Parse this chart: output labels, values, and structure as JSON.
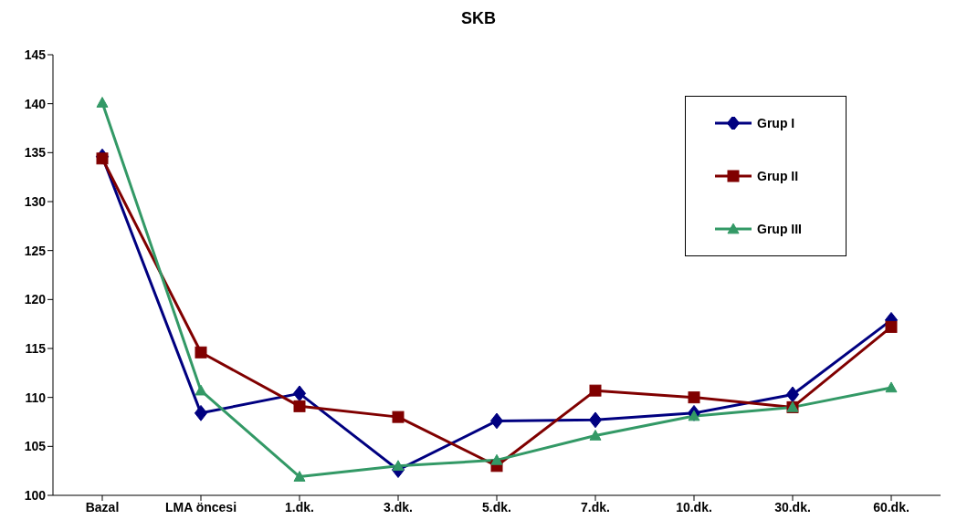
{
  "chart_data": {
    "type": "line",
    "title": "SKB",
    "categories": [
      "Bazal",
      "LMA öncesi",
      "1.dk.",
      "3.dk.",
      "5.dk.",
      "7.dk.",
      "10.dk.",
      "30.dk.",
      "60.dk."
    ],
    "series": [
      {
        "name": "Grup I",
        "color": "#000080",
        "marker": "diamond",
        "values": [
          134.6,
          108.4,
          110.4,
          102.6,
          107.6,
          107.7,
          108.4,
          110.3,
          117.9
        ]
      },
      {
        "name": "Grup II",
        "color": "#800000",
        "marker": "square",
        "values": [
          134.4,
          114.6,
          109.1,
          108.0,
          103.0,
          110.7,
          110.0,
          109.0,
          117.2
        ]
      },
      {
        "name": "Grup III",
        "color": "#339966",
        "marker": "triangle",
        "values": [
          140.1,
          110.7,
          101.9,
          103.0,
          103.6,
          106.1,
          108.1,
          109.0,
          111.0
        ]
      }
    ],
    "ylim": [
      100,
      145
    ],
    "yticks": [
      100,
      105,
      110,
      115,
      120,
      125,
      130,
      135,
      140,
      145
    ],
    "grid": false,
    "legend": "top right"
  }
}
